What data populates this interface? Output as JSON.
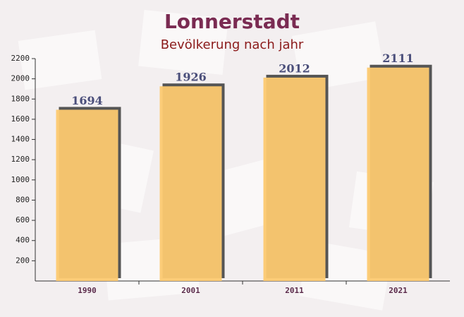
{
  "chart_data": {
    "type": "bar",
    "title": "Lonnerstadt",
    "subtitle": "Bevölkerung nach jahr",
    "categories": [
      "1990",
      "2001",
      "2011",
      "2021"
    ],
    "values": [
      1694,
      1926,
      2012,
      2111
    ],
    "color": "#fcc970",
    "ylim": [
      0,
      2200
    ],
    "yticks": [
      200,
      400,
      600,
      800,
      1000,
      1200,
      1400,
      1600,
      1800,
      2000,
      2200
    ]
  }
}
